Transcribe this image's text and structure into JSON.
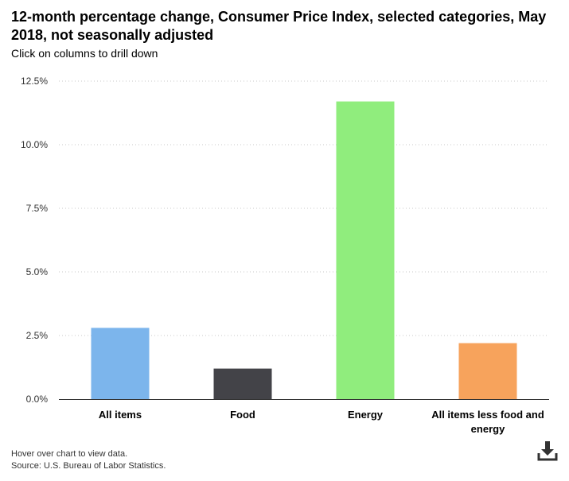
{
  "header": {
    "title": "12-month percentage change, Consumer Price Index, selected categories, May 2018, not seasonally adjusted",
    "subtitle": "Click on columns to drill down"
  },
  "footer": {
    "hover_note": "Hover over chart to view data.",
    "source": "Source: U.S. Bureau of Labor Statistics."
  },
  "icons": {
    "download": "download-icon"
  },
  "colors": {
    "all_items": "#7cb5ec",
    "food": "#434348",
    "energy": "#90ed7d",
    "core": "#f7a35c",
    "grid": "#c8c8c8"
  },
  "chart_data": {
    "type": "bar",
    "title": "12-month percentage change, Consumer Price Index, selected categories, May 2018, not seasonally adjusted",
    "xlabel": "",
    "ylabel": "",
    "categories": [
      "All items",
      "Food",
      "Energy",
      "All items less food and energy"
    ],
    "values": [
      2.8,
      1.2,
      11.7,
      2.2
    ],
    "colors": [
      "#7cb5ec",
      "#434348",
      "#90ed7d",
      "#f7a35c"
    ],
    "ylim": [
      0,
      12.5
    ],
    "yticks": [
      0,
      2.5,
      5,
      7.5,
      10,
      12.5
    ],
    "ytick_labels": [
      "0.0%",
      "2.5%",
      "5.0%",
      "7.5%",
      "10.0%",
      "12.5%"
    ],
    "grid": true
  }
}
